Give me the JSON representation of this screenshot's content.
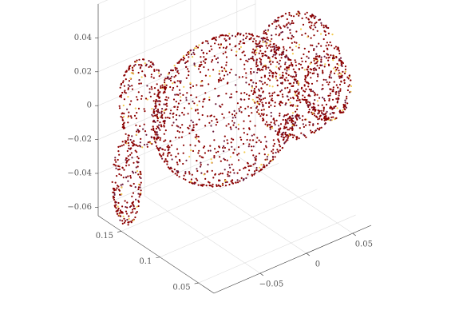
{
  "chart_data": {
    "type": "scatter",
    "subtype": "3d-point-cloud",
    "title": "",
    "xlabel": "",
    "ylabel": "",
    "zlabel": "",
    "grid": true,
    "legend": "none",
    "colors": {
      "fill": "#8b0000",
      "highlight": "#f2c94c",
      "outline": "#6b1a3a"
    },
    "axes": {
      "x": {
        "ticks": [
          -0.05,
          0,
          0.05
        ],
        "tick_labels": [
          "−0.05",
          "0",
          "0.05"
        ],
        "range": [
          -0.1,
          0.07
        ]
      },
      "y": {
        "ticks": [
          0.05,
          0.1,
          0.15
        ],
        "tick_labels": [
          "0.05",
          "0.1",
          "0.15"
        ],
        "range": [
          0.03,
          0.18
        ]
      },
      "z": {
        "ticks": [
          -0.06,
          -0.04,
          -0.02,
          0,
          0.02,
          0.04
        ],
        "tick_labels": [
          "−0.06",
          "−0.04",
          "−0.02",
          "0",
          "0.02",
          "0.04"
        ],
        "range": [
          -0.065,
          0.06
        ]
      }
    },
    "shapes_3d": [
      {
        "part": "body",
        "cx": -0.02,
        "cy": 0.11,
        "cz": 0.0,
        "rx": 0.07,
        "ry": 0.045,
        "rz": 0.04
      },
      {
        "part": "head",
        "cx": 0.035,
        "cy": 0.085,
        "cz": 0.015,
        "rx": 0.04,
        "ry": 0.035,
        "rz": 0.035
      },
      {
        "part": "snout",
        "cx": 0.06,
        "cy": 0.075,
        "cz": 0.005,
        "rx": 0.02,
        "ry": 0.02,
        "rz": 0.018
      },
      {
        "part": "tail",
        "cx": -0.085,
        "cy": 0.14,
        "cz": 0.01,
        "rx": 0.02,
        "ry": 0.02,
        "rz": 0.025
      },
      {
        "part": "leg",
        "cx": -0.09,
        "cy": 0.155,
        "cz": -0.04,
        "rx": 0.012,
        "ry": 0.012,
        "rz": 0.025
      }
    ]
  }
}
